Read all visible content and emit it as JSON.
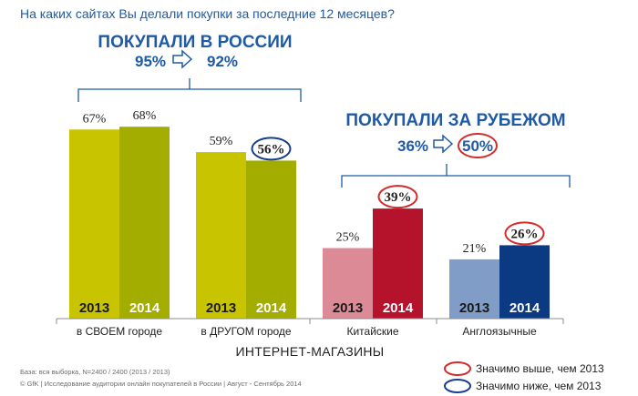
{
  "question": "На каких сайтах Вы делали покупки за последние 12 месяцев?",
  "groups": [
    {
      "title": "ПОКУПАЛИ В РОССИИ",
      "from": "95%",
      "to": "92%",
      "to_highlight": null
    },
    {
      "title": "ПОКУПАЛИ ЗА РУБЕЖОМ",
      "from": "36%",
      "to": "50%",
      "to_highlight": "higher"
    }
  ],
  "chart_data": {
    "type": "bar",
    "categories": [
      "в СВОЕМ городе",
      "в ДРУГОМ городе",
      "Китайские",
      "Англоязычные"
    ],
    "xlabel": "ИНТЕРНЕТ-МАГАЗИНЫ",
    "ylim": [
      0,
      100
    ],
    "series": [
      {
        "name": "2013",
        "values": [
          67,
          59,
          25,
          21
        ],
        "labels": [
          "67%",
          "59%",
          "25%",
          "21%"
        ],
        "colors": [
          "#c9c400",
          "#c9c400",
          "#db8a96",
          "#7f9dc6"
        ]
      },
      {
        "name": "2014",
        "values": [
          68,
          56,
          39,
          26
        ],
        "labels": [
          "68%",
          "56%",
          "39%",
          "26%"
        ],
        "colors": [
          "#a3ad00",
          "#a3ad00",
          "#b5122b",
          "#0b3a82"
        ],
        "highlight": [
          null,
          "lower",
          "higher",
          "higher"
        ]
      }
    ]
  },
  "legend": {
    "higher_label": "Значимо выше, чем 2013",
    "lower_label": "Значимо ниже, чем 2013",
    "higher_color": "#d62b2b",
    "lower_color": "#153f8c"
  },
  "footer": {
    "base": "База: вся выборка, N=2400 / 2400 (2013 / 2013)",
    "source": "© GfK | Исследование аудитории онлайн покупателей в России | Август - Сентябрь 2014"
  }
}
